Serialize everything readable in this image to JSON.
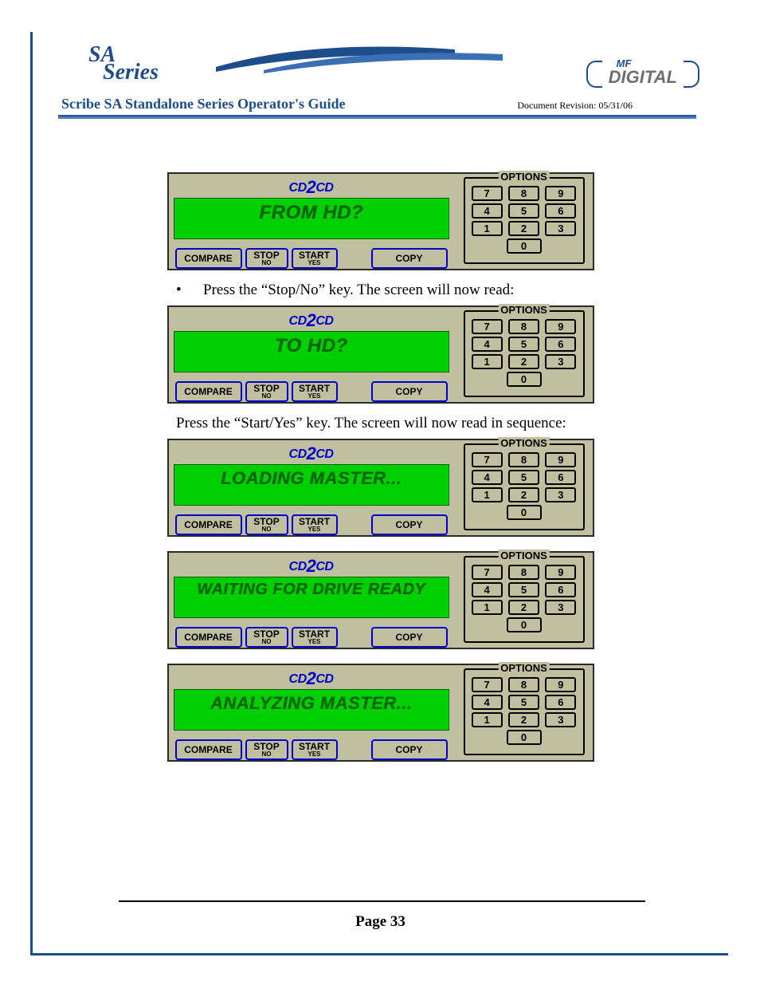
{
  "header": {
    "sa_line1": "SA",
    "sa_line2": "Series",
    "mf_top": "MF",
    "mf_bottom": "DIGITAL",
    "guide_title": "Scribe SA Standalone Series Operator's Guide",
    "doc_rev": "Document Revision: 05/31/06"
  },
  "colors": {
    "frame": "#1e4d8b",
    "panel_bg": "#c0bfa0",
    "screen_bg": "#00d000",
    "screen_text": "#006600",
    "btn_border": "#0000cc"
  },
  "panel_common": {
    "logo": "CD2CD",
    "options_label": "OPTIONS",
    "compare": "COMPARE",
    "stop_top": "STOP",
    "stop_sub": "NO",
    "start_top": "START",
    "start_sub": "YES",
    "copy": "COPY",
    "keys": [
      "7",
      "8",
      "9",
      "4",
      "5",
      "6",
      "1",
      "2",
      "3"
    ],
    "zero": "0"
  },
  "instructions": {
    "line1": "Press the “Stop/No” key. The screen will now read:",
    "line2": "Press the “Start/Yes” key. The screen will now read in sequence:"
  },
  "panels": [
    {
      "screen": "FROM HD?",
      "font_size": 24
    },
    {
      "screen": "TO HD?",
      "font_size": 24
    },
    {
      "screen": "LOADING MASTER...",
      "font_size": 22
    },
    {
      "screen": "WAITING FOR DRIVE READY",
      "font_size": 20
    },
    {
      "screen": "ANALYZING MASTER...",
      "font_size": 22
    }
  ],
  "footer": {
    "page": "Page 33",
    "bullet": "•"
  }
}
